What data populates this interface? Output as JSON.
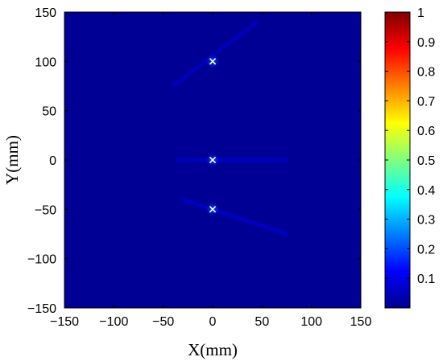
{
  "chart_data": {
    "type": "heatmap",
    "xlabel": "X(mm)",
    "ylabel": "Y(mm)",
    "xlim": [
      -150,
      150
    ],
    "ylim": [
      -150,
      150
    ],
    "xticks": [
      -150,
      -100,
      -50,
      0,
      50,
      100,
      150
    ],
    "yticks": [
      -150,
      -100,
      -50,
      0,
      50,
      100,
      150
    ],
    "colormap": "jet",
    "background_value": 0.02,
    "colorbar": {
      "range": [
        0,
        1
      ],
      "ticks": [
        0.1,
        0.2,
        0.3,
        0.4,
        0.5,
        0.6,
        0.7,
        0.8,
        0.9,
        1
      ]
    },
    "targets": [
      {
        "x": 0,
        "y": 100
      },
      {
        "x": 0,
        "y": 0
      },
      {
        "x": 0,
        "y": -50
      }
    ],
    "marker_color": "#ffffff",
    "sidelobes": [
      {
        "from": [
          -40,
          75
        ],
        "to": [
          45,
          140
        ],
        "value": 0.1
      },
      {
        "from": [
          -35,
          0
        ],
        "to": [
          75,
          0
        ],
        "value": 0.14
      },
      {
        "from": [
          -30,
          -40
        ],
        "to": [
          75,
          -75
        ],
        "value": 0.12
      }
    ]
  }
}
